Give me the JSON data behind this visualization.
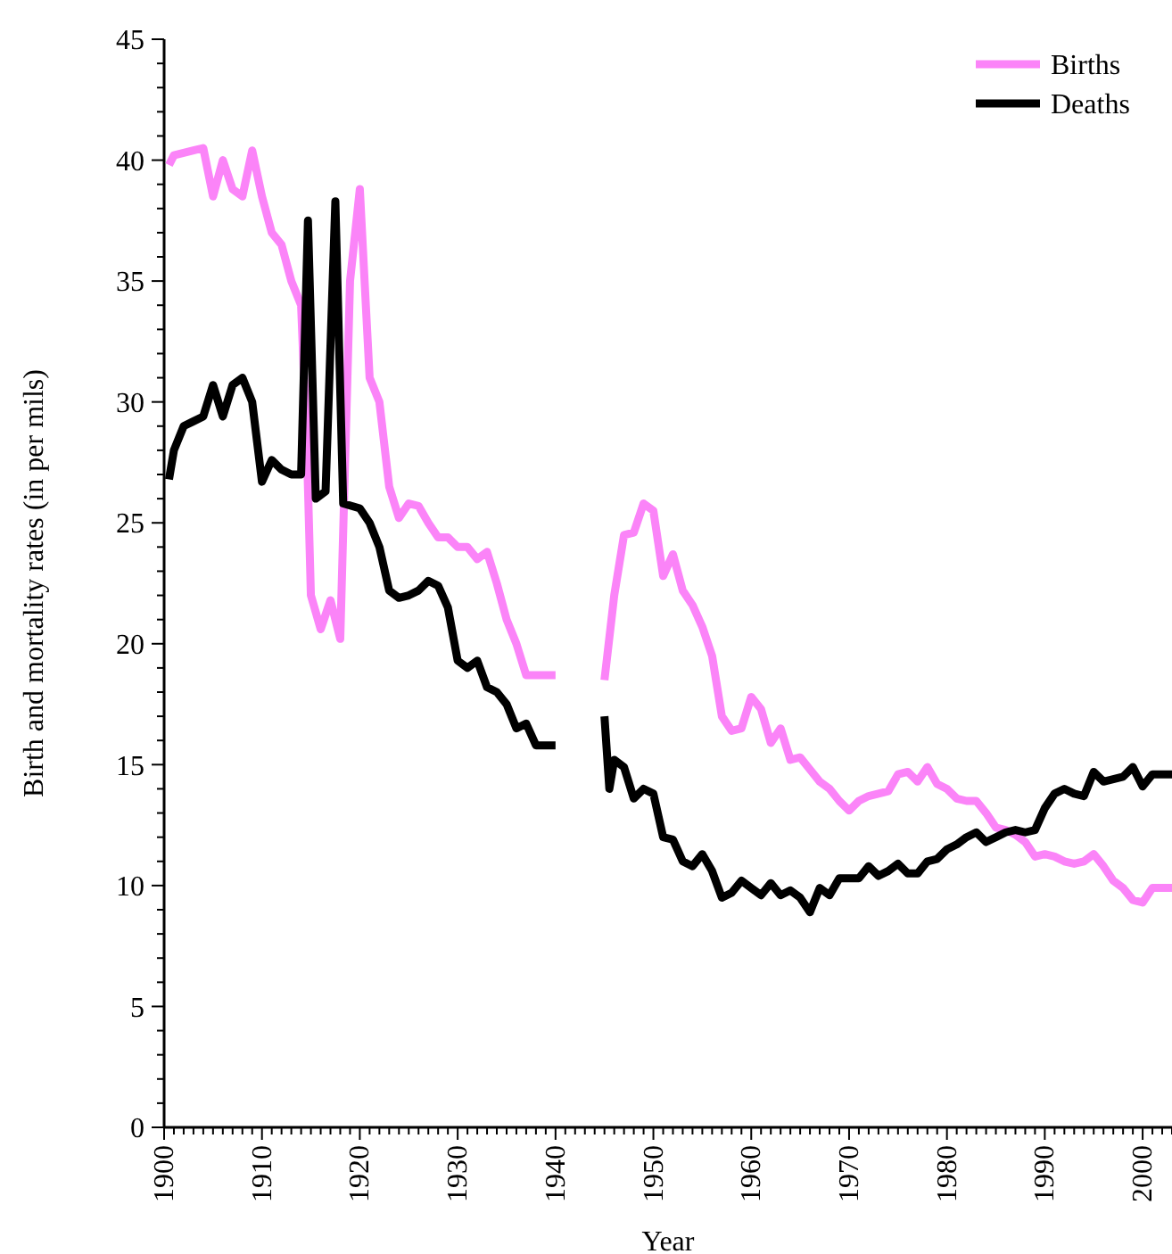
{
  "chart_data": {
    "type": "line",
    "xlabel": "Year",
    "ylabel": "Birth and mortality rates (in per mils)",
    "xlim": [
      1900,
      2003
    ],
    "ylim": [
      0,
      45
    ],
    "xticks": [
      1900,
      {
        "value": 1901,
        "label": null
      },
      {
        "value": 1902,
        "label": null
      },
      {
        "value": 1903,
        "label": null
      },
      {
        "value": 1904,
        "label": null
      },
      {
        "value": 1905,
        "label": null
      },
      {
        "value": 1906,
        "label": null
      },
      {
        "value": 1907,
        "label": null
      },
      {
        "value": 1908,
        "label": null
      },
      {
        "value": 1909,
        "label": null
      },
      1910,
      {
        "value": 1911,
        "label": null
      },
      {
        "value": 1912,
        "label": null
      },
      {
        "value": 1913,
        "label": null
      },
      {
        "value": 1914,
        "label": null
      },
      {
        "value": 1915,
        "label": null
      },
      {
        "value": 1916,
        "label": null
      },
      {
        "value": 1917,
        "label": null
      },
      {
        "value": 1918,
        "label": null
      },
      {
        "value": 1919,
        "label": null
      },
      1920,
      {
        "value": 1921,
        "label": null
      },
      {
        "value": 1922,
        "label": null
      },
      {
        "value": 1923,
        "label": null
      },
      {
        "value": 1924,
        "label": null
      },
      {
        "value": 1925,
        "label": null
      },
      {
        "value": 1926,
        "label": null
      },
      {
        "value": 1927,
        "label": null
      },
      {
        "value": 1928,
        "label": null
      },
      {
        "value": 1929,
        "label": null
      },
      1930,
      {
        "value": 1931,
        "label": null
      },
      {
        "value": 1932,
        "label": null
      },
      {
        "value": 1933,
        "label": null
      },
      {
        "value": 1934,
        "label": null
      },
      {
        "value": 1935,
        "label": null
      },
      {
        "value": 1936,
        "label": null
      },
      {
        "value": 1937,
        "label": null
      },
      {
        "value": 1938,
        "label": null
      },
      {
        "value": 1939,
        "label": null
      },
      1940,
      {
        "value": 1941,
        "label": null
      },
      {
        "value": 1942,
        "label": null
      },
      {
        "value": 1943,
        "label": null
      },
      {
        "value": 1944,
        "label": null
      },
      {
        "value": 1945,
        "label": null
      },
      {
        "value": 1946,
        "label": null
      },
      {
        "value": 1947,
        "label": null
      },
      {
        "value": 1948,
        "label": null
      },
      {
        "value": 1949,
        "label": null
      },
      1950,
      {
        "value": 1951,
        "label": null
      },
      {
        "value": 1952,
        "label": null
      },
      {
        "value": 1953,
        "label": null
      },
      {
        "value": 1954,
        "label": null
      },
      {
        "value": 1955,
        "label": null
      },
      {
        "value": 1956,
        "label": null
      },
      {
        "value": 1957,
        "label": null
      },
      {
        "value": 1958,
        "label": null
      },
      {
        "value": 1959,
        "label": null
      },
      1960,
      {
        "value": 1961,
        "label": null
      },
      {
        "value": 1962,
        "label": null
      },
      {
        "value": 1963,
        "label": null
      },
      {
        "value": 1964,
        "label": null
      },
      {
        "value": 1965,
        "label": null
      },
      {
        "value": 1966,
        "label": null
      },
      {
        "value": 1967,
        "label": null
      },
      {
        "value": 1968,
        "label": null
      },
      {
        "value": 1969,
        "label": null
      },
      1970,
      {
        "value": 1971,
        "label": null
      },
      {
        "value": 1972,
        "label": null
      },
      {
        "value": 1973,
        "label": null
      },
      {
        "value": 1974,
        "label": null
      },
      {
        "value": 1975,
        "label": null
      },
      {
        "value": 1976,
        "label": null
      },
      {
        "value": 1977,
        "label": null
      },
      {
        "value": 1978,
        "label": null
      },
      {
        "value": 1979,
        "label": null
      },
      1980,
      {
        "value": 1981,
        "label": null
      },
      {
        "value": 1982,
        "label": null
      },
      {
        "value": 1983,
        "label": null
      },
      {
        "value": 1984,
        "label": null
      },
      {
        "value": 1985,
        "label": null
      },
      {
        "value": 1986,
        "label": null
      },
      {
        "value": 1987,
        "label": null
      },
      {
        "value": 1988,
        "label": null
      },
      {
        "value": 1989,
        "label": null
      },
      1990,
      {
        "value": 1991,
        "label": null
      },
      {
        "value": 1992,
        "label": null
      },
      {
        "value": 1993,
        "label": null
      },
      {
        "value": 1994,
        "label": null
      },
      {
        "value": 1995,
        "label": null
      },
      {
        "value": 1996,
        "label": null
      },
      {
        "value": 1997,
        "label": null
      },
      {
        "value": 1998,
        "label": null
      },
      {
        "value": 1999,
        "label": null
      },
      2000,
      {
        "value": 2001,
        "label": null
      },
      {
        "value": 2002,
        "label": null
      },
      {
        "value": 2003,
        "label": null
      }
    ],
    "yticks": [
      0,
      {
        "value": 1,
        "label": null
      },
      {
        "value": 2,
        "label": null
      },
      {
        "value": 3,
        "label": null
      },
      {
        "value": 4,
        "label": null
      },
      5,
      {
        "value": 6,
        "label": null
      },
      {
        "value": 7,
        "label": null
      },
      {
        "value": 8,
        "label": null
      },
      {
        "value": 9,
        "label": null
      },
      10,
      {
        "value": 11,
        "label": null
      },
      {
        "value": 12,
        "label": null
      },
      {
        "value": 13,
        "label": null
      },
      {
        "value": 14,
        "label": null
      },
      15,
      {
        "value": 16,
        "label": null
      },
      {
        "value": 17,
        "label": null
      },
      {
        "value": 18,
        "label": null
      },
      {
        "value": 19,
        "label": null
      },
      20,
      {
        "value": 21,
        "label": null
      },
      {
        "value": 22,
        "label": null
      },
      {
        "value": 23,
        "label": null
      },
      {
        "value": 24,
        "label": null
      },
      25,
      {
        "value": 26,
        "label": null
      },
      {
        "value": 27,
        "label": null
      },
      {
        "value": 28,
        "label": null
      },
      {
        "value": 29,
        "label": null
      },
      30,
      {
        "value": 31,
        "label": null
      },
      {
        "value": 32,
        "label": null
      },
      {
        "value": 33,
        "label": null
      },
      {
        "value": 34,
        "label": null
      },
      35,
      {
        "value": 36,
        "label": null
      },
      {
        "value": 37,
        "label": null
      },
      {
        "value": 38,
        "label": null
      },
      {
        "value": 39,
        "label": null
      },
      40,
      {
        "value": 41,
        "label": null
      },
      {
        "value": 42,
        "label": null
      },
      {
        "value": 43,
        "label": null
      },
      {
        "value": 44,
        "label": null
      },
      45
    ],
    "legend": "top right",
    "grid": false,
    "series": [
      {
        "name": "Births",
        "color": "#fb84f8",
        "x": [
          1900.5,
          1901,
          1903,
          1904,
          1905,
          1906,
          1907,
          1908,
          1909,
          1910,
          1911,
          1912,
          1913,
          1914,
          1914.6,
          1915,
          1916,
          1917,
          1918,
          1919,
          1920,
          1921,
          1922,
          1923,
          1924,
          1925,
          1926,
          1927,
          1928,
          1929,
          1930,
          1931,
          1932,
          1933,
          1934,
          1935,
          1936,
          1937,
          1938,
          1940,
          1942,
          1945,
          1946,
          1947,
          1948,
          1949,
          1950,
          1951,
          1952,
          1953,
          1954,
          1955,
          1956,
          1957,
          1958,
          1959,
          1960,
          1961,
          1962,
          1963,
          1964,
          1965,
          1966,
          1967,
          1968,
          1969,
          1970,
          1971,
          1972,
          1973,
          1974,
          1975,
          1976,
          1977,
          1978,
          1979,
          1980,
          1981,
          1982,
          1983,
          1984,
          1985,
          1986,
          1987,
          1988,
          1989,
          1990,
          1991,
          1992,
          1993,
          1994,
          1995,
          1996,
          1997,
          1998,
          1999,
          2000,
          2001,
          2002,
          2003
        ],
        "values": [
          39.8,
          40.2,
          40.4,
          40.5,
          38.5,
          40,
          38.8,
          38.5,
          40.4,
          38.5,
          37,
          36.5,
          35,
          34,
          28,
          22,
          20.6,
          21.8,
          20.2,
          35,
          38.8,
          31,
          30,
          26.5,
          25.2,
          25.8,
          25.7,
          25,
          24.4,
          24.4,
          24,
          24,
          23.5,
          23.8,
          22.5,
          21,
          20,
          18.7,
          18.7,
          18.7,
          null,
          18.5,
          22,
          24.5,
          24.6,
          25.8,
          25.5,
          22.8,
          23.7,
          22.2,
          21.6,
          20.7,
          19.5,
          17,
          16.4,
          16.5,
          17.8,
          17.3,
          15.9,
          16.5,
          15.2,
          15.3,
          14.8,
          14.3,
          14,
          13.5,
          13.1,
          13.5,
          13.7,
          13.8,
          13.9,
          14.6,
          14.7,
          14.3,
          14.9,
          14.2,
          14,
          13.6,
          13.5,
          13.5,
          13,
          12.4,
          12.3,
          12.1,
          11.8,
          11.2,
          11.3,
          11.2,
          11,
          10.9,
          11,
          11.3,
          10.8,
          10.2,
          9.9,
          9.4,
          9.3,
          9.9,
          9.9,
          9.9
        ]
      },
      {
        "name": "Deaths",
        "color": "#000000",
        "x": [
          1900.5,
          1901,
          1902,
          1903,
          1904,
          1905,
          1906,
          1907,
          1908,
          1909,
          1910,
          1911,
          1912,
          1913,
          1914,
          1914.7,
          1915.5,
          1916.5,
          1917.5,
          1918.3,
          1920,
          1921,
          1922,
          1923,
          1924,
          1925,
          1926,
          1927,
          1928,
          1929,
          1930,
          1931,
          1932,
          1933,
          1934,
          1935,
          1936,
          1937,
          1938,
          1940,
          1942,
          1945,
          1945.5,
          1946,
          1947,
          1948,
          1949,
          1950,
          1951,
          1952,
          1953,
          1954,
          1955,
          1956,
          1957,
          1958,
          1959,
          1960,
          1961,
          1962,
          1963,
          1964,
          1965,
          1966,
          1967,
          1968,
          1969,
          1970,
          1971,
          1972,
          1973,
          1974,
          1975,
          1976,
          1977,
          1978,
          1979,
          1980,
          1981,
          1982,
          1983,
          1984,
          1985,
          1986,
          1987,
          1988,
          1989,
          1990,
          1991,
          1992,
          1993,
          1994,
          1995,
          1996,
          1997,
          1998,
          1999,
          2000,
          2001,
          2002,
          2003
        ],
        "values": [
          26.8,
          28,
          29,
          29.2,
          29.4,
          30.7,
          29.4,
          30.7,
          31,
          30,
          26.7,
          27.6,
          27.2,
          27,
          27,
          37.5,
          26,
          26.3,
          38.3,
          25.8,
          25.6,
          25,
          24,
          22.2,
          21.9,
          22,
          22.2,
          22.6,
          22.4,
          21.5,
          19.3,
          19,
          19.3,
          18.2,
          18,
          17.5,
          16.5,
          16.7,
          15.8,
          15.8,
          null,
          17,
          14,
          15.2,
          14.9,
          13.6,
          14,
          13.8,
          12,
          11.9,
          11,
          10.8,
          11.3,
          10.6,
          9.5,
          9.7,
          10.2,
          9.9,
          9.6,
          10.1,
          9.6,
          9.8,
          9.5,
          8.9,
          9.9,
          9.6,
          10.3,
          10.3,
          10.3,
          10.8,
          10.4,
          10.6,
          10.9,
          10.5,
          10.5,
          11,
          11.1,
          11.5,
          11.7,
          12,
          12.2,
          11.8,
          12,
          12.2,
          12.3,
          12.2,
          12.3,
          13.2,
          13.8,
          14,
          13.8,
          13.7,
          14.7,
          14.3,
          14.4,
          14.5,
          14.9,
          14.1,
          14.6,
          14.6,
          14.6
        ]
      }
    ]
  }
}
